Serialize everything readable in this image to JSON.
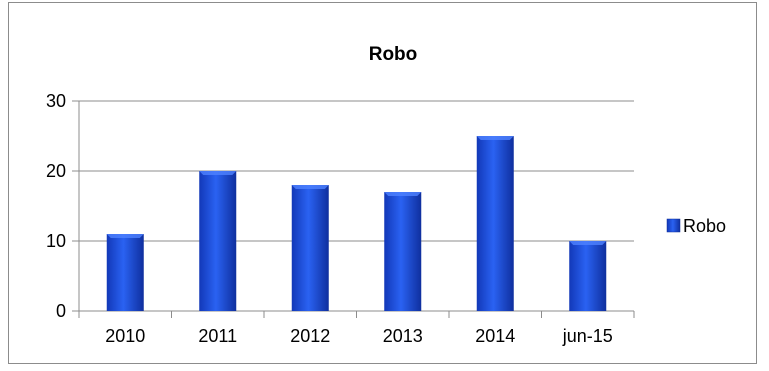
{
  "chart_data": {
    "type": "bar",
    "title": "Robo",
    "xlabel": "",
    "ylabel": "",
    "categories": [
      "2010",
      "2011",
      "2012",
      "2013",
      "2014",
      "jun-15"
    ],
    "series": [
      {
        "name": "Robo",
        "values": [
          11,
          20,
          18,
          17,
          25,
          10
        ],
        "color": "#1f4fe0"
      }
    ],
    "ylim": [
      0,
      30
    ],
    "yticks": [
      0,
      10,
      20,
      30
    ],
    "grid": true,
    "legend_position": "right"
  }
}
